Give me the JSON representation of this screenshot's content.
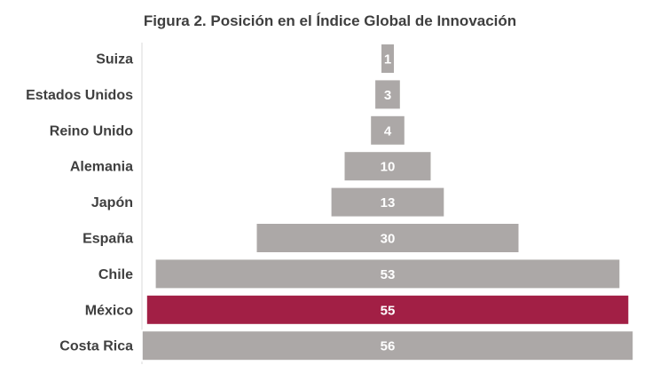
{
  "chart_data": {
    "type": "bar",
    "title": "Figura 2. Posición en el Índice Global de Innovación",
    "categories": [
      "Suiza",
      "Estados Unidos",
      "Reino Unido",
      "Alemania",
      "Japón",
      "España",
      "Chile",
      "México",
      "Costa Rica"
    ],
    "values": [
      1,
      3,
      4,
      10,
      13,
      30,
      53,
      55,
      56
    ],
    "orientation": "horizontal-centered",
    "colors": {
      "default": "#aca8a7",
      "highlight": "#a21f45",
      "highlight_category": "México"
    }
  }
}
